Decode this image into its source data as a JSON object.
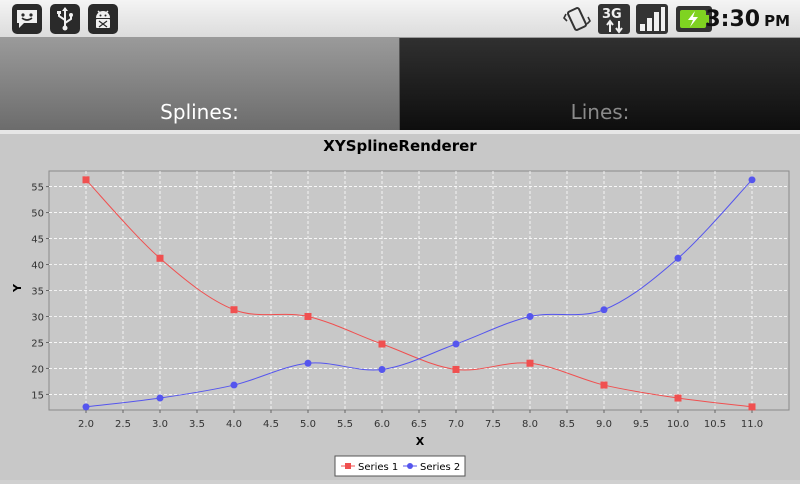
{
  "status_bar": {
    "time": "3:30",
    "ampm": "PM",
    "left_icons": [
      "messaging-icon",
      "usb-icon",
      "android-debug-icon"
    ],
    "right_icons": [
      "vibrate-icon",
      "3g-data-icon",
      "signal-icon",
      "battery-charging-icon"
    ],
    "network_label": "3G",
    "battery_color": "#7fd321"
  },
  "tabs": [
    {
      "label": "Splines:",
      "selected": true
    },
    {
      "label": "Lines:",
      "selected": false
    }
  ],
  "chart_data": {
    "type": "line",
    "title": "XYSplineRenderer",
    "xlabel": "X",
    "ylabel": "Y",
    "xlim": [
      1.5,
      11.5
    ],
    "ylim": [
      12,
      58
    ],
    "x_ticks": [
      "2.0",
      "2.5",
      "3.0",
      "3.5",
      "4.0",
      "4.5",
      "5.0",
      "5.5",
      "6.0",
      "6.5",
      "7.0",
      "7.5",
      "8.0",
      "8.5",
      "9.0",
      "9.5",
      "10.0",
      "10.5",
      "11.0"
    ],
    "y_ticks": [
      "15",
      "20",
      "25",
      "30",
      "35",
      "40",
      "45",
      "50",
      "55"
    ],
    "grid": true,
    "legend": "bottom",
    "series": [
      {
        "name": "Series 1",
        "color": "#f05050",
        "marker": "square",
        "x": [
          2,
          3,
          4,
          5,
          6,
          7,
          8,
          9,
          10,
          11
        ],
        "y": [
          56.3,
          41.2,
          31.3,
          30.0,
          24.7,
          19.8,
          21.0,
          16.8,
          14.3,
          12.6
        ]
      },
      {
        "name": "Series 2",
        "color": "#5555ee",
        "marker": "circle",
        "x": [
          2,
          3,
          4,
          5,
          6,
          7,
          8,
          9,
          10,
          11
        ],
        "y": [
          12.6,
          14.3,
          16.8,
          21.0,
          19.8,
          24.7,
          30.0,
          31.3,
          41.2,
          56.3
        ]
      }
    ]
  }
}
